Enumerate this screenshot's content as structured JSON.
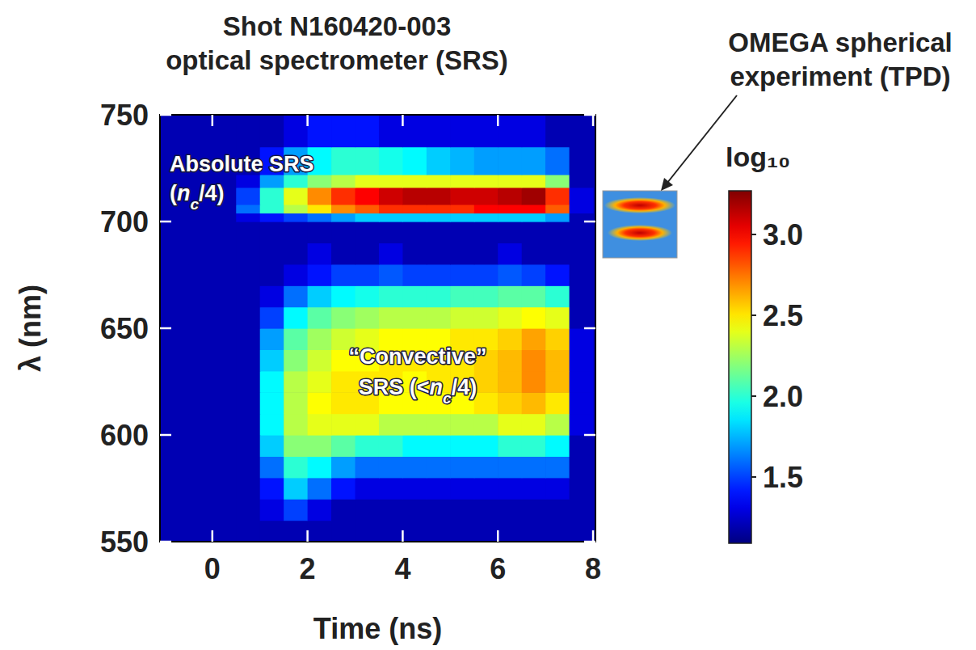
{
  "chart_data": {
    "type": "heatmap",
    "title": [
      "Shot N160420-003",
      "optical spectrometer (SRS)"
    ],
    "x_label": "Time (ns)",
    "y_label": "λ (nm)",
    "xlim": [
      -1.1,
      8.05
    ],
    "ylim": [
      550,
      750
    ],
    "xticks": [
      0,
      2,
      4,
      6,
      8
    ],
    "yticks": [
      550,
      600,
      650,
      700,
      750
    ],
    "x_edges": [
      -1,
      -0.5,
      0,
      0.5,
      1,
      1.5,
      2,
      2.5,
      3,
      3.5,
      4,
      4.5,
      5,
      5.5,
      6,
      6.5,
      7,
      7.5,
      8
    ],
    "y_edges": [
      550,
      560,
      570,
      580,
      590,
      600,
      610,
      620,
      630,
      640,
      650,
      660,
      670,
      680,
      690,
      700,
      704,
      708,
      716,
      722,
      735,
      750
    ],
    "cells": [
      [
        1.2,
        1.2,
        1.2,
        1.2,
        1.2,
        1.2,
        1.2,
        1.2,
        1.2,
        1.2,
        1.2,
        1.2,
        1.2,
        1.2,
        1.2,
        1.2,
        1.2,
        1.2
      ],
      [
        1.2,
        1.2,
        1.2,
        1.2,
        1.3,
        1.5,
        1.3,
        1.2,
        1.2,
        1.2,
        1.2,
        1.2,
        1.2,
        1.2,
        1.2,
        1.2,
        1.2,
        1.2
      ],
      [
        1.2,
        1.2,
        1.2,
        1.2,
        1.4,
        1.8,
        1.6,
        1.4,
        1.3,
        1.3,
        1.3,
        1.3,
        1.3,
        1.3,
        1.3,
        1.3,
        1.3,
        1.2
      ],
      [
        1.2,
        1.2,
        1.2,
        1.2,
        1.6,
        2.0,
        1.9,
        1.7,
        1.6,
        1.6,
        1.6,
        1.6,
        1.6,
        1.6,
        1.6,
        1.6,
        1.6,
        1.2
      ],
      [
        1.2,
        1.2,
        1.2,
        1.2,
        1.8,
        2.2,
        2.2,
        2.1,
        2.0,
        2.0,
        1.9,
        1.9,
        1.9,
        1.9,
        2.0,
        2.0,
        1.9,
        1.2
      ],
      [
        1.2,
        1.2,
        1.2,
        1.2,
        1.9,
        2.3,
        2.4,
        2.4,
        2.4,
        2.3,
        2.3,
        2.3,
        2.3,
        2.3,
        2.4,
        2.4,
        2.3,
        1.3
      ],
      [
        1.2,
        1.2,
        1.2,
        1.2,
        1.9,
        2.3,
        2.45,
        2.5,
        2.5,
        2.45,
        2.45,
        2.45,
        2.45,
        2.5,
        2.55,
        2.6,
        2.5,
        1.3
      ],
      [
        1.2,
        1.2,
        1.2,
        1.2,
        1.9,
        2.3,
        2.4,
        2.5,
        2.5,
        2.5,
        2.45,
        2.5,
        2.5,
        2.55,
        2.6,
        2.7,
        2.6,
        1.3
      ],
      [
        1.2,
        1.2,
        1.2,
        1.2,
        1.8,
        2.2,
        2.35,
        2.45,
        2.45,
        2.5,
        2.5,
        2.5,
        2.5,
        2.55,
        2.6,
        2.7,
        2.6,
        1.3
      ],
      [
        1.2,
        1.2,
        1.2,
        1.2,
        1.7,
        2.1,
        2.25,
        2.35,
        2.4,
        2.45,
        2.45,
        2.45,
        2.5,
        2.5,
        2.55,
        2.65,
        2.55,
        1.3
      ],
      [
        1.2,
        1.2,
        1.2,
        1.2,
        1.5,
        1.9,
        2.1,
        2.2,
        2.25,
        2.3,
        2.3,
        2.3,
        2.35,
        2.35,
        2.4,
        2.45,
        2.4,
        1.2
      ],
      [
        1.2,
        1.2,
        1.2,
        1.2,
        1.3,
        1.6,
        1.8,
        1.9,
        1.95,
        2.0,
        2.0,
        2.0,
        2.05,
        2.05,
        2.1,
        2.1,
        2.0,
        1.2
      ],
      [
        1.2,
        1.2,
        1.2,
        1.2,
        1.2,
        1.3,
        1.4,
        1.5,
        1.5,
        1.55,
        1.5,
        1.5,
        1.5,
        1.5,
        1.55,
        1.5,
        1.4,
        1.2
      ],
      [
        1.2,
        1.2,
        1.2,
        1.2,
        1.2,
        1.2,
        1.3,
        1.2,
        1.2,
        1.3,
        1.2,
        1.2,
        1.2,
        1.2,
        1.3,
        1.2,
        1.2,
        1.2
      ],
      [
        1.2,
        1.2,
        1.2,
        1.2,
        1.2,
        1.2,
        1.2,
        1.2,
        1.2,
        1.2,
        1.2,
        1.2,
        1.2,
        1.2,
        1.2,
        1.2,
        1.2,
        1.2
      ],
      [
        1.2,
        1.2,
        1.2,
        1.3,
        1.4,
        1.5,
        1.6,
        1.7,
        1.8,
        1.8,
        1.8,
        1.8,
        1.8,
        1.8,
        1.8,
        1.8,
        1.7,
        1.2
      ],
      [
        1.2,
        1.2,
        1.2,
        1.6,
        2.0,
        2.3,
        2.5,
        2.7,
        2.8,
        2.9,
        2.9,
        2.9,
        2.9,
        3.0,
        3.0,
        3.0,
        2.8,
        1.3
      ],
      [
        1.2,
        1.2,
        1.2,
        1.5,
        2.0,
        2.4,
        2.7,
        2.9,
        3.0,
        3.1,
        3.15,
        3.15,
        3.1,
        3.1,
        3.15,
        3.2,
        2.9,
        1.3
      ],
      [
        1.2,
        1.2,
        1.2,
        1.3,
        1.7,
        2.0,
        2.2,
        2.3,
        2.4,
        2.4,
        2.4,
        2.4,
        2.4,
        2.4,
        2.4,
        2.4,
        2.2,
        1.2
      ],
      [
        1.2,
        1.2,
        1.2,
        1.2,
        1.4,
        1.7,
        1.9,
        2.0,
        2.0,
        1.95,
        1.9,
        1.8,
        1.75,
        1.7,
        1.7,
        1.7,
        1.6,
        1.2
      ],
      [
        1.2,
        1.2,
        1.2,
        1.2,
        1.2,
        1.3,
        1.4,
        1.4,
        1.4,
        1.3,
        1.3,
        1.3,
        1.3,
        1.3,
        1.3,
        1.3,
        1.2,
        1.2
      ]
    ],
    "colorbar": {
      "label": "log₁₀",
      "range": [
        1.09,
        3.27
      ],
      "ticks": [
        1.5,
        {
          "value": 2,
          "label": "2.0"
        },
        2.5,
        {
          "value": 3,
          "label": "3.0"
        }
      ]
    },
    "annotations": [
      {
        "lines": [
          [
            {
              "text": "Absolute SRS"
            }
          ],
          [
            {
              "text": "("
            },
            {
              "text": "n",
              "italic": true
            },
            {
              "text": "c",
              "italic": true,
              "sub": true
            },
            {
              "text": "/4)"
            }
          ]
        ]
      },
      {
        "lines": [
          [
            {
              "text": "“Convective”"
            }
          ],
          [
            {
              "text": "SRS (<"
            },
            {
              "text": "n",
              "italic": true
            },
            {
              "text": "c",
              "italic": true,
              "sub": true
            },
            {
              "text": "/4)"
            }
          ]
        ]
      }
    ],
    "inset_label": [
      "OMEGA spherical",
      "experiment (TPD)"
    ]
  }
}
